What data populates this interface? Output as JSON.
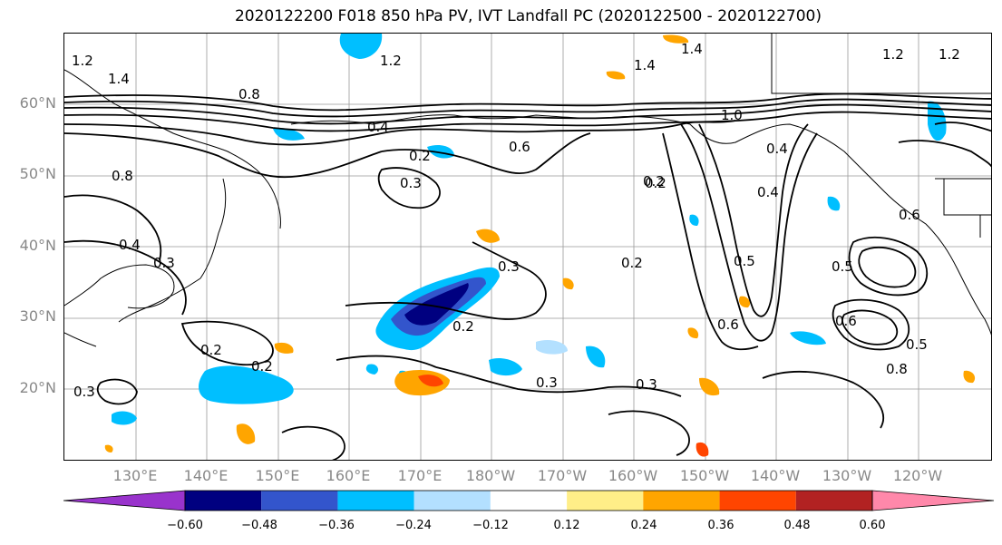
{
  "title": "2020122200 F018 850 hPa PV, IVT Landfall PC (2020122500 - 2020122700)",
  "lat_labels": [
    "60°N",
    "50°N",
    "40°N",
    "30°N",
    "20°N"
  ],
  "lon_labels": [
    "130°E",
    "140°E",
    "150°E",
    "160°E",
    "170°E",
    "180°W",
    "170°W",
    "160°W",
    "150°W",
    "140°W",
    "130°W",
    "120°W"
  ],
  "colorbar": {
    "colors": [
      "#9933cc",
      "#000080",
      "#3355cc",
      "#00bfff",
      "#b3e0ff",
      "#ffffff",
      "#ffee88",
      "#ffa500",
      "#ff4500",
      "#b22222",
      "#ff88aa"
    ],
    "tick_labels": [
      "−0.60",
      "−0.48",
      "−0.36",
      "−0.24",
      "−0.12",
      "0.12",
      "0.24",
      "0.36",
      "0.48",
      "0.60"
    ]
  },
  "contour_labels": [
    "1.2",
    "1.4",
    "1.2",
    "1.4",
    "0.8",
    "1.4",
    "1.2",
    "0.4",
    "0.2",
    "0.3",
    "0.6",
    "0.8",
    "0.4",
    "0.3",
    "0.2",
    "0.3",
    "0.2",
    "0.2",
    "0.3",
    "0.3",
    "0.2",
    "0.3",
    "0.2",
    "0.6",
    "0.5",
    "0.5",
    "0.4",
    "0.6",
    "0.8",
    "0.5",
    "0.6",
    "1.0",
    "0.4",
    "0.2",
    "1.2"
  ]
}
